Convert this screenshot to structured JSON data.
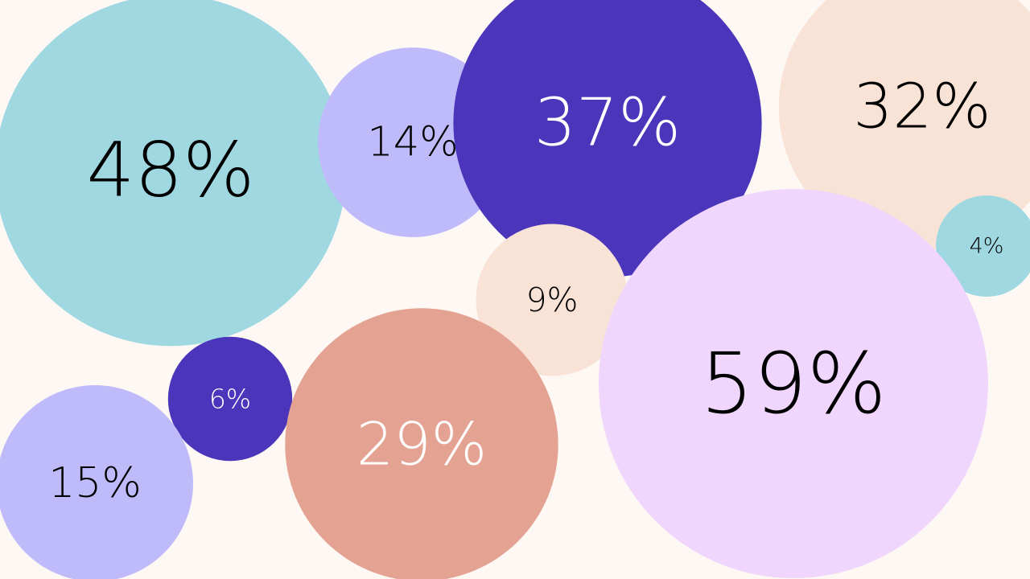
{
  "chart_data": {
    "type": "bubble",
    "title": "",
    "values": [
      48,
      14,
      37,
      32,
      4,
      9,
      59,
      6,
      29,
      15
    ],
    "labels": [
      "48%",
      "14%",
      "37%",
      "32%",
      "4%",
      "9%",
      "59%",
      "6%",
      "29%",
      "15%"
    ],
    "colors": [
      "#a0d8e2",
      "#bfbafa",
      "#4a35bb",
      "#f9e2d6",
      "#a0d8e2",
      "#f9e2d6",
      "#f0d6fc",
      "#4a35bb",
      "#e4a392",
      "#bfbafa"
    ],
    "label_colors": [
      "#000000",
      "#000000",
      "#ffffff",
      "#000000",
      "#000000",
      "#000000",
      "#000000",
      "#ffffff",
      "#ffffff",
      "#000000"
    ]
  }
}
